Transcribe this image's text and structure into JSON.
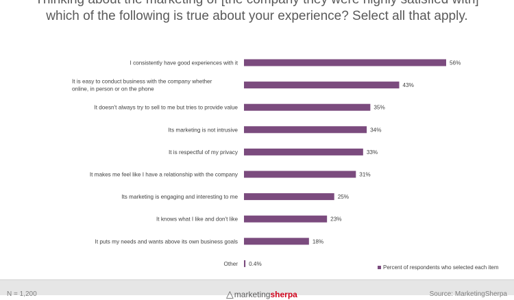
{
  "chart_data": {
    "type": "bar",
    "orientation": "horizontal",
    "title": "Thinking about the marketing of [the company they were highly satisfied with] which of the following is true about your experience? Select all that apply.",
    "categories": [
      [
        "I consistently have good experiences with it"
      ],
      [
        "It is easy to conduct business with the company whether",
        "online, in person or on the phone"
      ],
      [
        "It doesn't always try to sell to me but tries to provide value"
      ],
      [
        "Its marketing is not intrusive"
      ],
      [
        "It is respectful of my privacy"
      ],
      [
        "It makes me feel like I have a relationship with the company"
      ],
      [
        "Its marketing is engaging and interesting to me"
      ],
      [
        "It knows what I like and don't like"
      ],
      [
        "It puts my needs and wants above its own business goals"
      ],
      [
        "Other"
      ]
    ],
    "values": [
      56,
      43,
      35,
      34,
      33,
      31,
      25,
      23,
      18,
      0.4
    ],
    "value_labels": [
      "56%",
      "43%",
      "35%",
      "34%",
      "33%",
      "31%",
      "25%",
      "23%",
      "18%",
      "0.4%"
    ],
    "xlim": [
      0,
      60
    ],
    "series_name": "Percent of respondents who selected each item",
    "bar_color": "#7b4b7e"
  },
  "footer": {
    "sample": "N = 1,200",
    "logo_marketing": "marketing",
    "logo_sherpa": "sherpa",
    "source": "Source: MarketingSherpa"
  }
}
